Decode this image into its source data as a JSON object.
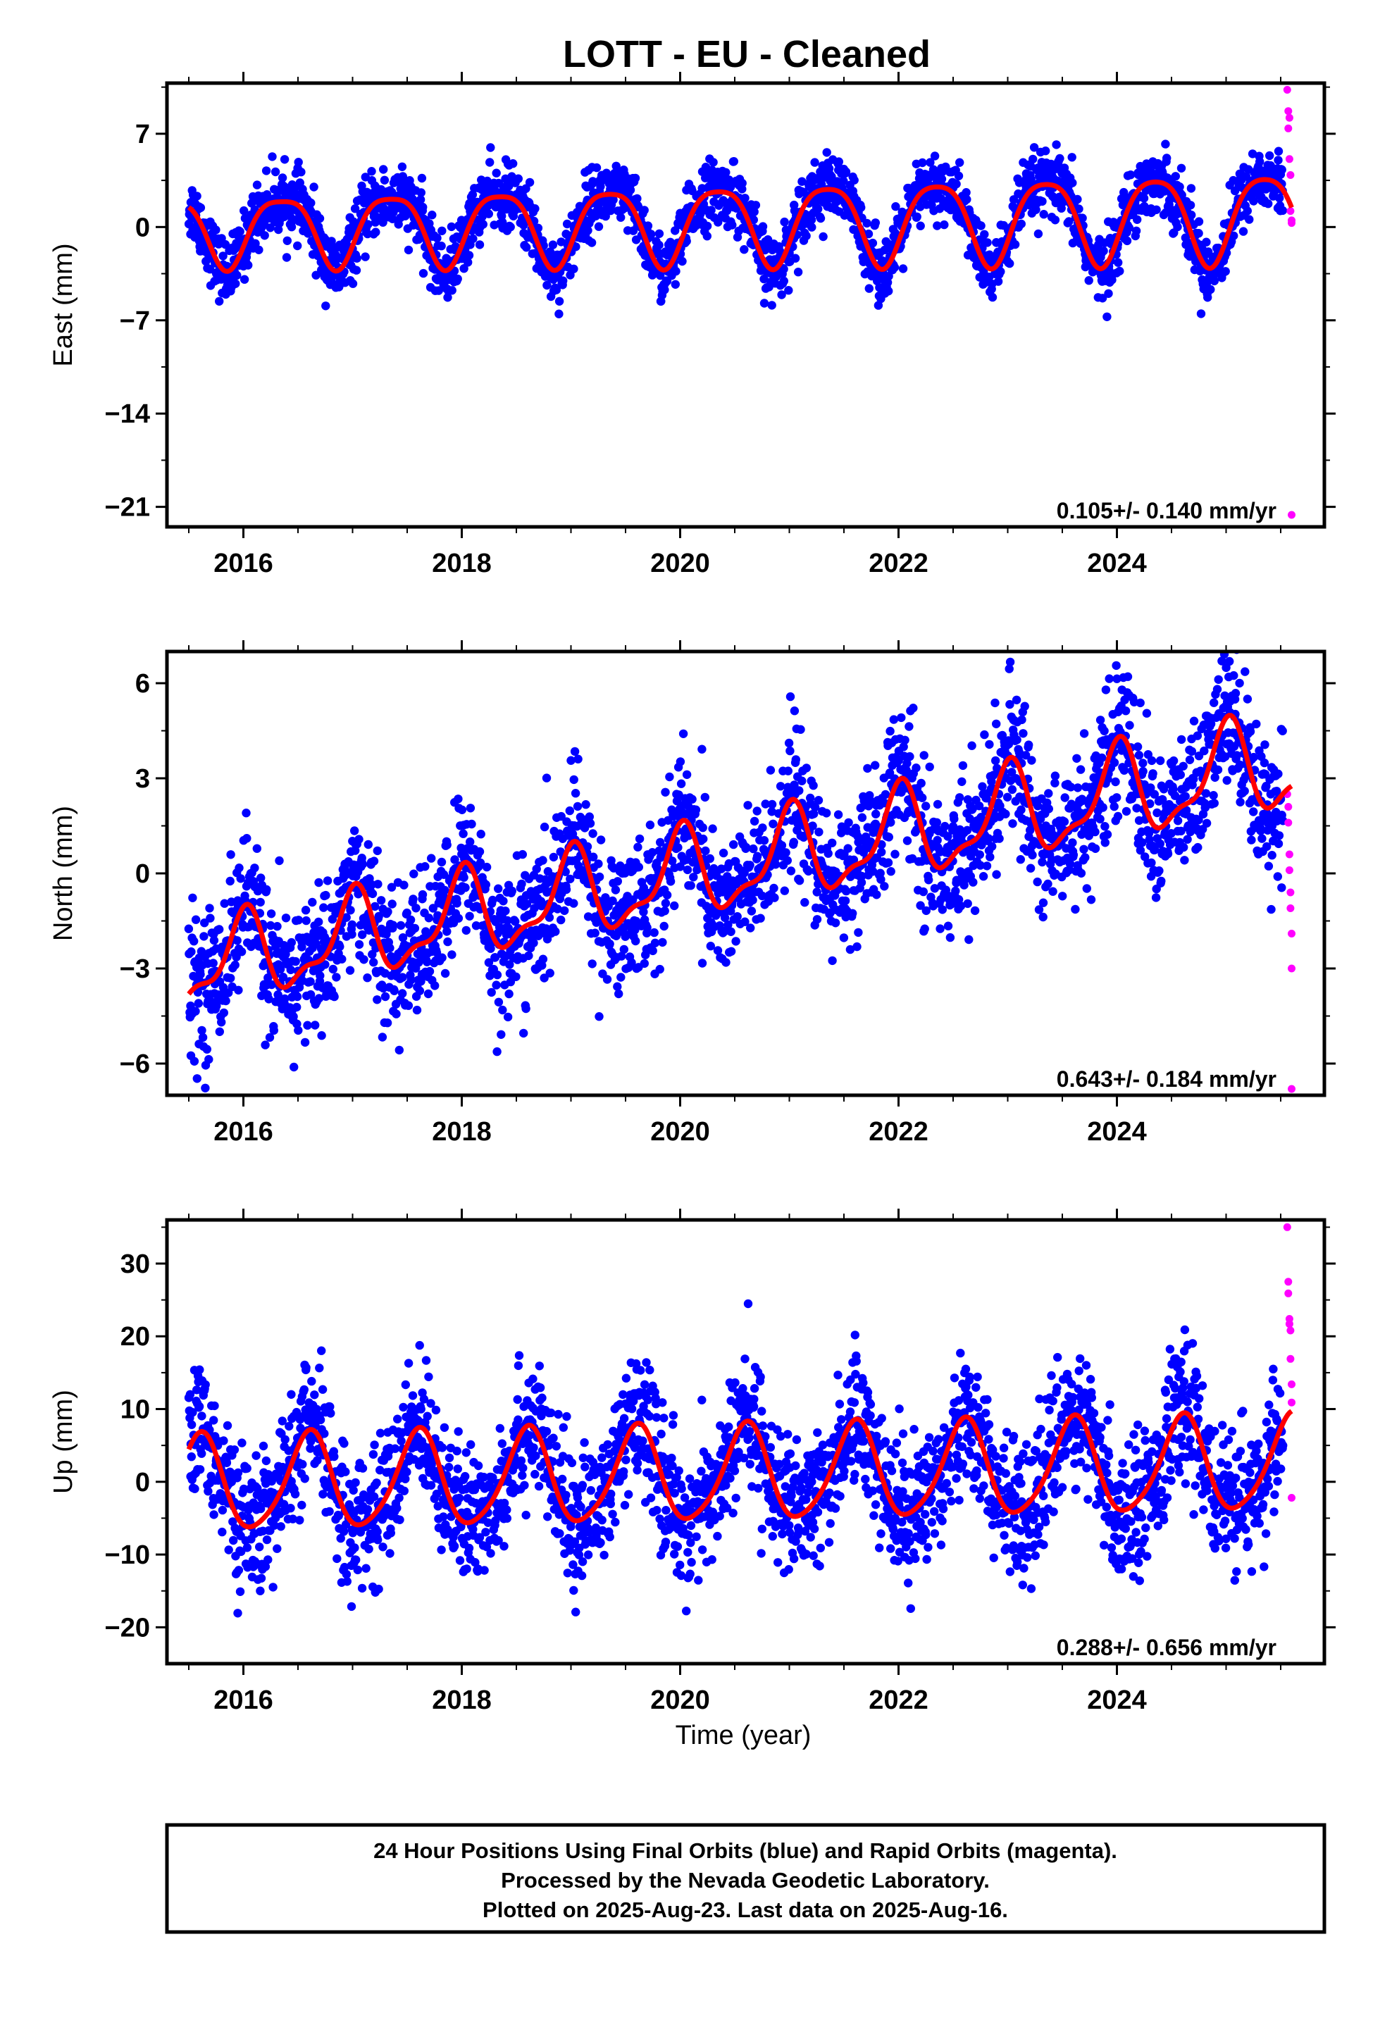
{
  "title": "LOTT  - EU - Cleaned",
  "xlabel": "Time (year)",
  "footer": {
    "lines": [
      "24 Hour Positions Using Final Orbits (blue) and Rapid Orbits (magenta).",
      "Processed by the Nevada Geodetic Laboratory.",
      "Plotted on 2025-Aug-23. Last data on 2025-Aug-16."
    ]
  },
  "colors": {
    "final": "#0000ff",
    "rapid": "#ff00ff",
    "model": "#ff0000",
    "frame": "#000000"
  },
  "chart_data": [
    {
      "type": "scatter",
      "ylabel": "East (mm)",
      "rate_label": "0.105+/- 0.140 mm/yr",
      "xlim": [
        2015.3,
        2025.9
      ],
      "ylim": [
        -22.5,
        10.8
      ],
      "yticks": [
        7,
        0,
        -7,
        -14,
        -21
      ],
      "xticks": [
        2016,
        2018,
        2020,
        2022,
        2024
      ],
      "model": {
        "offset": -0.2,
        "rate": 0.105,
        "amp": 2.9,
        "amp_drift": 0.08,
        "phase_peak": 0.35,
        "semi_amp": 0.6,
        "semi_phase": 0.1
      },
      "scatter_sigma": 1.2,
      "final_range": [
        2015.5,
        2025.52
      ],
      "rapid": [
        [
          2025.56,
          10.3
        ],
        [
          2025.57,
          8.7
        ],
        [
          2025.57,
          7.4
        ],
        [
          2025.58,
          8.2
        ],
        [
          2025.58,
          5.1
        ],
        [
          2025.59,
          3.9
        ],
        [
          2025.59,
          1.2
        ],
        [
          2025.6,
          0.5
        ],
        [
          2025.6,
          0.3
        ],
        [
          2025.6,
          -21.6
        ]
      ]
    },
    {
      "type": "scatter",
      "ylabel": "North (mm)",
      "rate_label": "0.643+/- 0.184 mm/yr",
      "xlim": [
        2015.3,
        2025.9
      ],
      "ylim": [
        -7.0,
        7.0
      ],
      "yticks": [
        6,
        3,
        0,
        -3,
        -6
      ],
      "xticks": [
        2016,
        2018,
        2020,
        2022,
        2024
      ],
      "model": {
        "offset": -3.0,
        "rate": 0.643,
        "amp": 1.3,
        "amp_drift": 0.02,
        "phase_peak": 0.0,
        "semi_amp": 0.5,
        "semi_phase": 0.05
      },
      "scatter_sigma": 1.1,
      "final_range": [
        2015.5,
        2025.52
      ],
      "rapid": [
        [
          2025.56,
          2.5
        ],
        [
          2025.57,
          2.1
        ],
        [
          2025.57,
          1.6
        ],
        [
          2025.58,
          0.6
        ],
        [
          2025.58,
          0.1
        ],
        [
          2025.59,
          -0.6
        ],
        [
          2025.59,
          -1.1
        ],
        [
          2025.6,
          -1.9
        ],
        [
          2025.6,
          -3.0
        ],
        [
          2025.6,
          -6.8
        ]
      ]
    },
    {
      "type": "scatter",
      "ylabel": "Up (mm)",
      "rate_label": "0.288+/- 0.656 mm/yr",
      "xlim": [
        2015.3,
        2025.9
      ],
      "ylim": [
        -25.0,
        36.0
      ],
      "yticks": [
        30,
        20,
        10,
        0,
        -10,
        -20
      ],
      "xticks": [
        2016,
        2018,
        2020,
        2022,
        2024
      ],
      "model": {
        "offset": -0.5,
        "rate": 0.288,
        "amp": 6.5,
        "amp_drift": 0.0,
        "phase_peak": 0.6,
        "semi_amp": 1.0,
        "semi_phase": 0.15
      },
      "scatter_sigma": 4.5,
      "final_range": [
        2015.5,
        2025.52
      ],
      "rapid": [
        [
          2025.56,
          35.0
        ],
        [
          2025.57,
          27.5
        ],
        [
          2025.57,
          25.9
        ],
        [
          2025.58,
          22.4
        ],
        [
          2025.58,
          21.7
        ],
        [
          2025.59,
          20.8
        ],
        [
          2025.59,
          16.9
        ],
        [
          2025.6,
          13.4
        ],
        [
          2025.6,
          10.9
        ],
        [
          2025.6,
          -2.2
        ]
      ]
    }
  ]
}
